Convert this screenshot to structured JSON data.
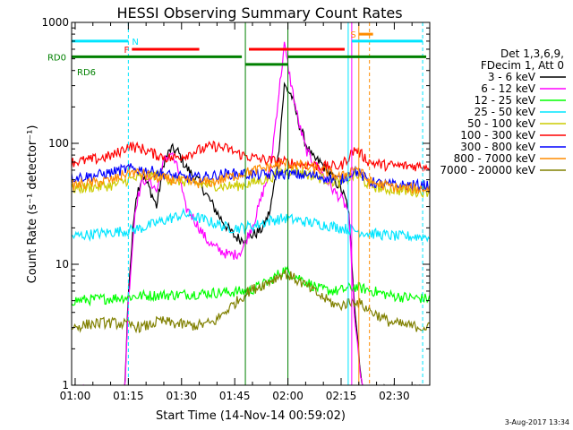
{
  "chart_data": {
    "type": "line",
    "title": "HESSI Observing Summary Count Rates",
    "xlabel": "Start Time (14-Nov-14 00:59:02)",
    "ylabel": "Count Rate (s⁻¹ detector⁻¹)",
    "yscale": "log",
    "ylim": [
      1,
      1000
    ],
    "xlim": [
      0,
      101
    ],
    "x_unit": "minutes since 00:59:02",
    "x_ticks": [
      {
        "x": 1,
        "label": "01:00"
      },
      {
        "x": 16,
        "label": "01:15"
      },
      {
        "x": 31,
        "label": "01:30"
      },
      {
        "x": 46,
        "label": "01:45"
      },
      {
        "x": 61,
        "label": "02:00"
      },
      {
        "x": 76,
        "label": "02:15"
      },
      {
        "x": 91,
        "label": "02:30"
      }
    ],
    "y_ticks": [
      {
        "y": 1,
        "label": "1"
      },
      {
        "y": 10,
        "label": "10"
      },
      {
        "y": 100,
        "label": "100"
      },
      {
        "y": 1000,
        "label": "1000"
      }
    ],
    "legend_position": "right",
    "legend_header": [
      "Det 1,3,6,9,",
      "FDecim 1, Att 0"
    ],
    "series": [
      {
        "name": "3 - 6 keV",
        "color": "#000000",
        "x": [
          0,
          15,
          16,
          18,
          20,
          22,
          24,
          26,
          28,
          30,
          32,
          34,
          36,
          38,
          40,
          42,
          44,
          46,
          48,
          50,
          52,
          54,
          56,
          58,
          60,
          62,
          64,
          66,
          68,
          70,
          72,
          74,
          76,
          78,
          80,
          82,
          84,
          86,
          88,
          90,
          92,
          94,
          96,
          98,
          100
        ],
        "y": [
          0.9,
          0.9,
          6,
          35,
          55,
          42,
          30,
          70,
          90,
          85,
          65,
          55,
          48,
          38,
          30,
          24,
          20,
          17,
          16,
          17,
          18,
          20,
          28,
          65,
          300,
          250,
          150,
          100,
          75,
          70,
          60,
          50,
          42,
          30,
          4,
          0.9,
          0.9,
          0.9,
          0.9,
          0.9,
          0.9,
          0.9,
          0.9,
          0.9,
          0.9
        ]
      },
      {
        "name": "6 - 12 keV",
        "color": "#ff00ff",
        "x": [
          0,
          15,
          16,
          18,
          20,
          22,
          24,
          26,
          28,
          30,
          32,
          34,
          36,
          38,
          40,
          42,
          44,
          46,
          48,
          50,
          52,
          54,
          56,
          58,
          60,
          62,
          64,
          66,
          68,
          70,
          72,
          74,
          76,
          78,
          80,
          82,
          84,
          86,
          88,
          90,
          92,
          94,
          96,
          98,
          100
        ],
        "y": [
          0.9,
          0.9,
          5,
          30,
          50,
          50,
          40,
          70,
          85,
          60,
          30,
          25,
          20,
          16,
          14,
          13,
          12,
          12,
          13,
          18,
          25,
          40,
          60,
          200,
          650,
          300,
          150,
          90,
          70,
          60,
          50,
          40,
          35,
          28,
          3,
          0.9,
          0.9,
          0.9,
          0.9,
          0.9,
          0.9,
          0.9,
          0.9,
          0.9,
          0.9
        ]
      },
      {
        "name": "12 - 25 keV",
        "color": "#00ff00",
        "x": [
          0,
          10,
          20,
          30,
          40,
          50,
          55,
          60,
          65,
          70,
          75,
          80,
          85,
          90,
          95,
          100
        ],
        "y": [
          5,
          5.2,
          5.5,
          5.6,
          5.8,
          6,
          7,
          9,
          7.5,
          6.2,
          6,
          6.5,
          6,
          5.5,
          5.3,
          5.2
        ]
      },
      {
        "name": "25 - 50 keV",
        "color": "#00e5ff",
        "x": [
          0,
          4,
          8,
          12,
          16,
          20,
          24,
          28,
          32,
          36,
          40,
          44,
          48,
          52,
          56,
          60,
          64,
          68,
          72,
          76,
          80,
          84,
          88,
          92,
          96,
          100
        ],
        "y": [
          17,
          17.5,
          18,
          18.5,
          19,
          20,
          22,
          24,
          26,
          24,
          22,
          20,
          20,
          21,
          23,
          24,
          23,
          22,
          21,
          20,
          19,
          18,
          17.5,
          17,
          17,
          17
        ]
      },
      {
        "name": "50 - 100 keV",
        "color": "#cccc00",
        "x": [
          0,
          4,
          8,
          12,
          16,
          20,
          24,
          28,
          32,
          36,
          40,
          44,
          48,
          52,
          56,
          60,
          64,
          68,
          72,
          76,
          80,
          84,
          88,
          92,
          96,
          100
        ],
        "y": [
          42,
          43,
          44,
          45,
          50,
          52,
          55,
          50,
          48,
          46,
          45,
          44,
          45,
          48,
          52,
          60,
          58,
          54,
          50,
          47,
          55,
          45,
          42,
          41,
          40,
          40
        ]
      },
      {
        "name": "100 - 300 keV",
        "color": "#ff0000",
        "x": [
          0,
          4,
          8,
          12,
          16,
          20,
          24,
          28,
          32,
          36,
          40,
          44,
          48,
          52,
          56,
          60,
          64,
          68,
          72,
          76,
          80,
          84,
          88,
          92,
          96,
          100
        ],
        "y": [
          70,
          72,
          75,
          80,
          95,
          90,
          80,
          75,
          80,
          88,
          95,
          90,
          80,
          75,
          72,
          70,
          68,
          66,
          64,
          65,
          90,
          70,
          66,
          65,
          65,
          65
        ]
      },
      {
        "name": "300 - 800 keV",
        "color": "#0000ff",
        "x": [
          0,
          4,
          8,
          12,
          16,
          20,
          24,
          28,
          32,
          36,
          40,
          44,
          48,
          52,
          56,
          60,
          64,
          68,
          72,
          76,
          80,
          84,
          88,
          92,
          96,
          100
        ],
        "y": [
          52,
          53,
          55,
          58,
          62,
          60,
          58,
          54,
          52,
          52,
          54,
          56,
          56,
          55,
          55,
          56,
          55,
          54,
          52,
          50,
          60,
          48,
          46,
          45,
          45,
          45
        ]
      },
      {
        "name": "800 - 7000 keV",
        "color": "#ff8c00",
        "x": [
          0,
          4,
          8,
          12,
          16,
          20,
          24,
          28,
          32,
          36,
          40,
          44,
          48,
          52,
          56,
          60,
          64,
          68,
          72,
          76,
          80,
          84,
          88,
          92,
          96,
          100
        ],
        "y": [
          45,
          46,
          48,
          50,
          58,
          56,
          52,
          50,
          48,
          47,
          48,
          52,
          56,
          60,
          64,
          68,
          66,
          62,
          58,
          52,
          64,
          48,
          45,
          43,
          42,
          42
        ]
      },
      {
        "name": "7000 - 20000 keV",
        "color": "#808000",
        "x": [
          0,
          5,
          10,
          15,
          20,
          25,
          30,
          35,
          40,
          45,
          50,
          55,
          60,
          65,
          70,
          75,
          80,
          85,
          90,
          95,
          100
        ],
        "y": [
          3,
          3.2,
          3.3,
          3.2,
          3,
          3.4,
          3.2,
          3.1,
          3.3,
          4.5,
          6,
          7,
          8.5,
          7,
          5.5,
          4.5,
          5,
          4,
          3.3,
          3.1,
          3
        ]
      }
    ],
    "state_bars": [
      {
        "label": "N",
        "color": "#00e5ff",
        "x_start": 0,
        "x_end": 16,
        "level": 700
      },
      {
        "label": "",
        "color": "#00e5ff",
        "x_start": 79,
        "x_end": 99,
        "level": 700
      },
      {
        "label": "F",
        "color": "#ff0000",
        "x_start": 17,
        "x_end": 36,
        "level": 600
      },
      {
        "label": "",
        "color": "#ff0000",
        "x_start": 50,
        "x_end": 77,
        "level": 600
      },
      {
        "label": "S",
        "color": "#ff8c00",
        "x_start": 81,
        "x_end": 85,
        "level": 800
      },
      {
        "label": "RD0",
        "color": "#008000",
        "x_start": 0,
        "x_end": 48,
        "level": 520
      },
      {
        "label": "",
        "color": "#008000",
        "x_start": 61,
        "x_end": 100,
        "level": 520
      },
      {
        "label": "RD6",
        "color": "#008000",
        "x_start": 49,
        "x_end": 61,
        "level": 450
      }
    ],
    "vertical_markers": [
      {
        "x": 16,
        "color": "#00e5ff",
        "style": "dashed"
      },
      {
        "x": 49,
        "color": "#008000",
        "style": "solid"
      },
      {
        "x": 61,
        "color": "#008000",
        "style": "solid"
      },
      {
        "x": 78,
        "color": "#00e5ff",
        "style": "solid"
      },
      {
        "x": 79,
        "color": "#ff00ff",
        "style": "solid"
      },
      {
        "x": 81,
        "color": "#ff8c00",
        "style": "solid"
      },
      {
        "x": 84,
        "color": "#ff8c00",
        "style": "dashed"
      },
      {
        "x": 99,
        "color": "#00e5ff",
        "style": "dashed"
      }
    ]
  },
  "footer_date": "3-Aug-2017 13:34"
}
